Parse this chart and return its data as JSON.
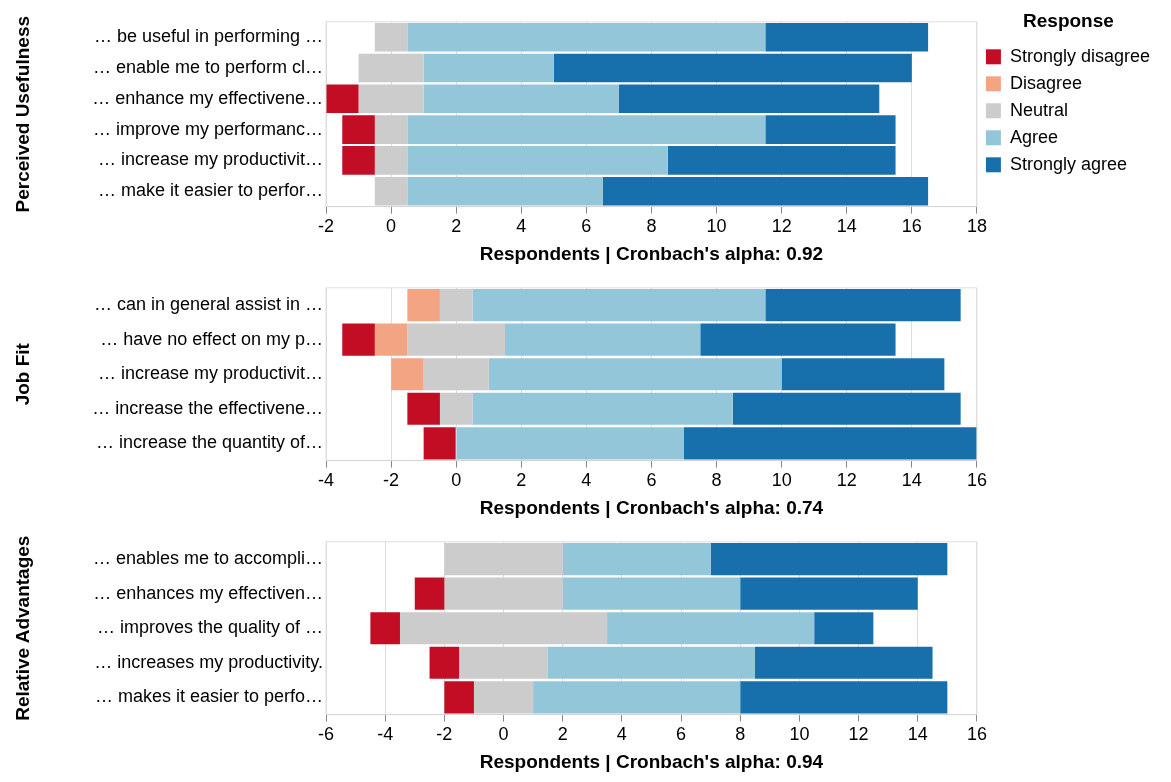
{
  "chart_data": [
    {
      "type": "bar",
      "orientation": "horizontal",
      "ylabel": "Perceived Usefulness",
      "xlabel": "Respondents | Cronbach's alpha: 0.92",
      "legend_title": "Response",
      "legend": "right",
      "grid": "x",
      "categories": [
        "… be useful in performing …",
        "… enable me to perform cl…",
        "… enhance my effectivene…",
        "… improve my performanc…",
        "… increase my productivit…",
        "… make it easier to perfor…"
      ],
      "xlim": [
        -2,
        18
      ],
      "xticks": [
        -2,
        0,
        2,
        4,
        6,
        8,
        10,
        12,
        14,
        16,
        18
      ],
      "series": [
        {
          "name": "Strongly disagree",
          "color": "#c30d24",
          "base": [
            null,
            null,
            -2,
            -1.5,
            -1.5,
            null
          ],
          "values": [
            null,
            null,
            1,
            1,
            1,
            null
          ]
        },
        {
          "name": "Disagree",
          "color": "#f3a583",
          "base": [
            null,
            null,
            null,
            null,
            null,
            null
          ],
          "values": [
            null,
            null,
            null,
            null,
            null,
            null
          ]
        },
        {
          "name": "Neutral",
          "color": "#cccccc",
          "base": [
            -0.5,
            -1,
            -1,
            -0.5,
            -0.5,
            -0.5
          ],
          "values": [
            1,
            2,
            2,
            1,
            1,
            1
          ]
        },
        {
          "name": "Agree",
          "color": "#94c6da",
          "base": [
            0.5,
            1,
            1,
            0.5,
            0.5,
            0.5
          ],
          "values": [
            11,
            4,
            6,
            11,
            8,
            6
          ]
        },
        {
          "name": "Strongly agree",
          "color": "#1770ab",
          "base": [
            11.5,
            5,
            7,
            11.5,
            8.5,
            6.5
          ],
          "values": [
            5,
            11,
            8,
            4,
            7,
            10
          ]
        }
      ]
    },
    {
      "type": "bar",
      "orientation": "horizontal",
      "ylabel": "Job Fit",
      "xlabel": "Respondents | Cronbach's alpha: 0.74",
      "grid": "x",
      "categories": [
        "… can in general assist in …",
        "… have no effect on my p…",
        "… increase my productivit…",
        "… increase the effectivene…",
        "… increase the quantity of…"
      ],
      "xlim": [
        -4,
        16
      ],
      "xticks": [
        -4,
        -2,
        0,
        2,
        4,
        6,
        8,
        10,
        12,
        14,
        16
      ],
      "series": [
        {
          "color": "#c30d24",
          "base": [
            null,
            -3.5,
            null,
            -1.5,
            -1
          ],
          "values": [
            null,
            1,
            null,
            1,
            1
          ]
        },
        {
          "color": "#f3a583",
          "base": [
            -1.5,
            -2.5,
            -2,
            null,
            null
          ],
          "values": [
            1,
            1,
            1,
            null,
            null
          ]
        },
        {
          "color": "#cccccc",
          "base": [
            -0.5,
            -1.5,
            -1,
            -0.5,
            null
          ],
          "values": [
            1,
            3,
            2,
            1,
            null
          ]
        },
        {
          "color": "#94c6da",
          "base": [
            0.5,
            1.5,
            1,
            0.5,
            0
          ],
          "values": [
            9,
            6,
            9,
            8,
            7
          ]
        },
        {
          "color": "#1770ab",
          "base": [
            9.5,
            7.5,
            10,
            8.5,
            7
          ],
          "values": [
            6,
            6,
            5,
            7,
            9
          ]
        }
      ]
    },
    {
      "type": "bar",
      "orientation": "horizontal",
      "ylabel": "Relative Advantages",
      "xlabel": "Respondents | Cronbach's alpha: 0.94",
      "grid": "x",
      "categories": [
        "… enables me to accompli…",
        "… enhances my effectiven…",
        "… improves the quality of …",
        "… increases my productivity.",
        "… makes it easier to perfo…"
      ],
      "xlim": [
        -6,
        16
      ],
      "xticks": [
        -6,
        -4,
        -2,
        0,
        2,
        4,
        6,
        8,
        10,
        12,
        14,
        16
      ],
      "series": [
        {
          "color": "#c30d24",
          "base": [
            null,
            -3,
            -4.5,
            -2.5,
            -2
          ],
          "values": [
            null,
            1,
            1,
            1,
            1
          ]
        },
        {
          "color": "#cccccc",
          "base": [
            -2,
            -2,
            -3.5,
            -1.5,
            -1
          ],
          "values": [
            4,
            4,
            7,
            3,
            2
          ]
        },
        {
          "color": "#94c6da",
          "base": [
            2,
            2,
            3.5,
            1.5,
            1
          ],
          "values": [
            5,
            6,
            7,
            7,
            7
          ]
        },
        {
          "color": "#1770ab",
          "base": [
            7,
            8,
            10.5,
            8.5,
            8
          ],
          "values": [
            8,
            6,
            2,
            6,
            7
          ]
        }
      ]
    }
  ]
}
